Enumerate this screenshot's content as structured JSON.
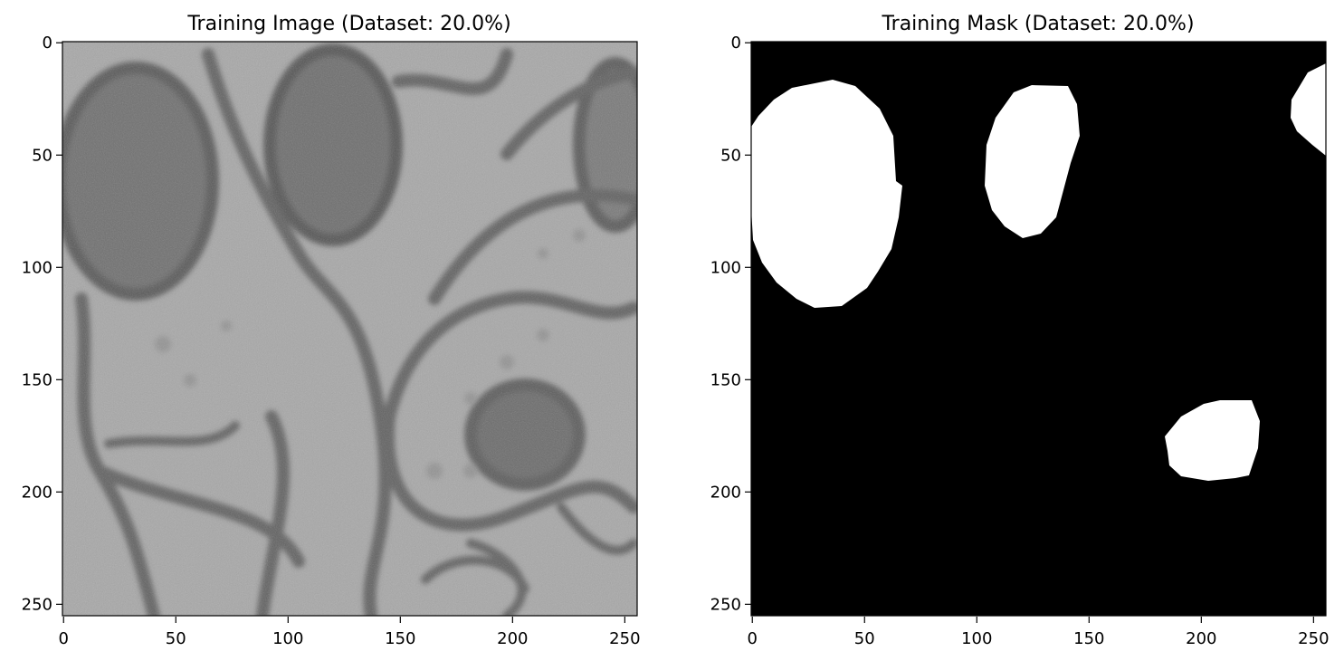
{
  "panels": [
    {
      "title": "Training Image (Dataset: 20.0%)",
      "x_ticks": [
        "0",
        "50",
        "100",
        "150",
        "200",
        "250"
      ],
      "y_ticks": [
        "0",
        "50",
        "100",
        "150",
        "200",
        "250"
      ],
      "content": "grayscale electron microscopy image"
    },
    {
      "title": "Training Mask (Dataset: 20.0%)",
      "x_ticks": [
        "0",
        "50",
        "100",
        "150",
        "200",
        "250"
      ],
      "y_ticks": [
        "0",
        "50",
        "100",
        "150",
        "200",
        "250"
      ],
      "content": "binary mask"
    }
  ],
  "axis_range": [
    0,
    255
  ],
  "colors": {
    "background": "#ffffff",
    "mask_background": "#000000",
    "mask_foreground": "#ffffff",
    "image_base": "#a6a6a6",
    "image_dark": "#5a5a5a"
  }
}
